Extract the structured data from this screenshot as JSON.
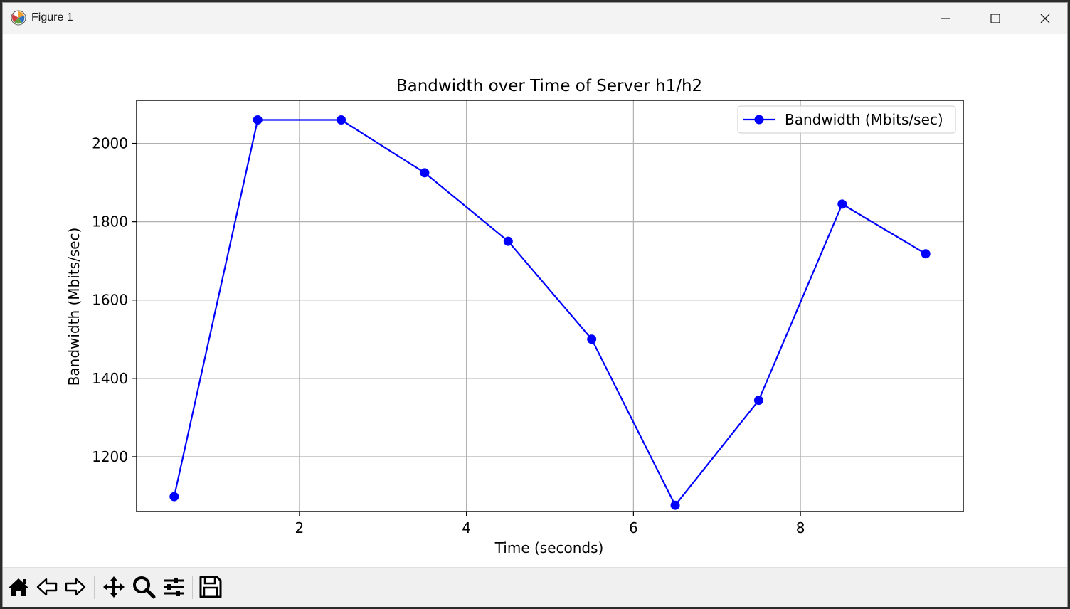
{
  "window": {
    "title": "Figure 1",
    "controls": [
      "minimize",
      "maximize",
      "close"
    ]
  },
  "toolbar": {
    "buttons": [
      {
        "name": "home-icon",
        "label": "Home"
      },
      {
        "name": "back-icon",
        "label": "Back"
      },
      {
        "name": "forward-icon",
        "label": "Forward"
      },
      {
        "name": "pan-icon",
        "label": "Pan"
      },
      {
        "name": "zoom-icon",
        "label": "Zoom"
      },
      {
        "name": "configure-subplots-icon",
        "label": "Configure subplots"
      },
      {
        "name": "save-icon",
        "label": "Save"
      }
    ]
  },
  "chart_data": {
    "type": "line",
    "title": "Bandwidth over Time of Server h1/h2",
    "xlabel": "Time (seconds)",
    "ylabel": "Bandwidth (Mbits/sec)",
    "xlim": [
      0.05,
      9.95
    ],
    "ylim": [
      1060,
      2110
    ],
    "xticks": [
      2,
      4,
      6,
      8
    ],
    "yticks": [
      1200,
      1400,
      1600,
      1800,
      2000
    ],
    "grid": true,
    "legend_position": "top-right",
    "series": [
      {
        "name": "Bandwidth (Mbits/sec)",
        "color": "#0000ff",
        "marker": "circle",
        "x": [
          0.5,
          1.5,
          2.5,
          3.5,
          4.5,
          5.5,
          6.5,
          7.5,
          8.5,
          9.5
        ],
        "y": [
          1098,
          2060,
          2060,
          1925,
          1750,
          1500,
          1076,
          1344,
          1845,
          1718
        ]
      }
    ]
  }
}
